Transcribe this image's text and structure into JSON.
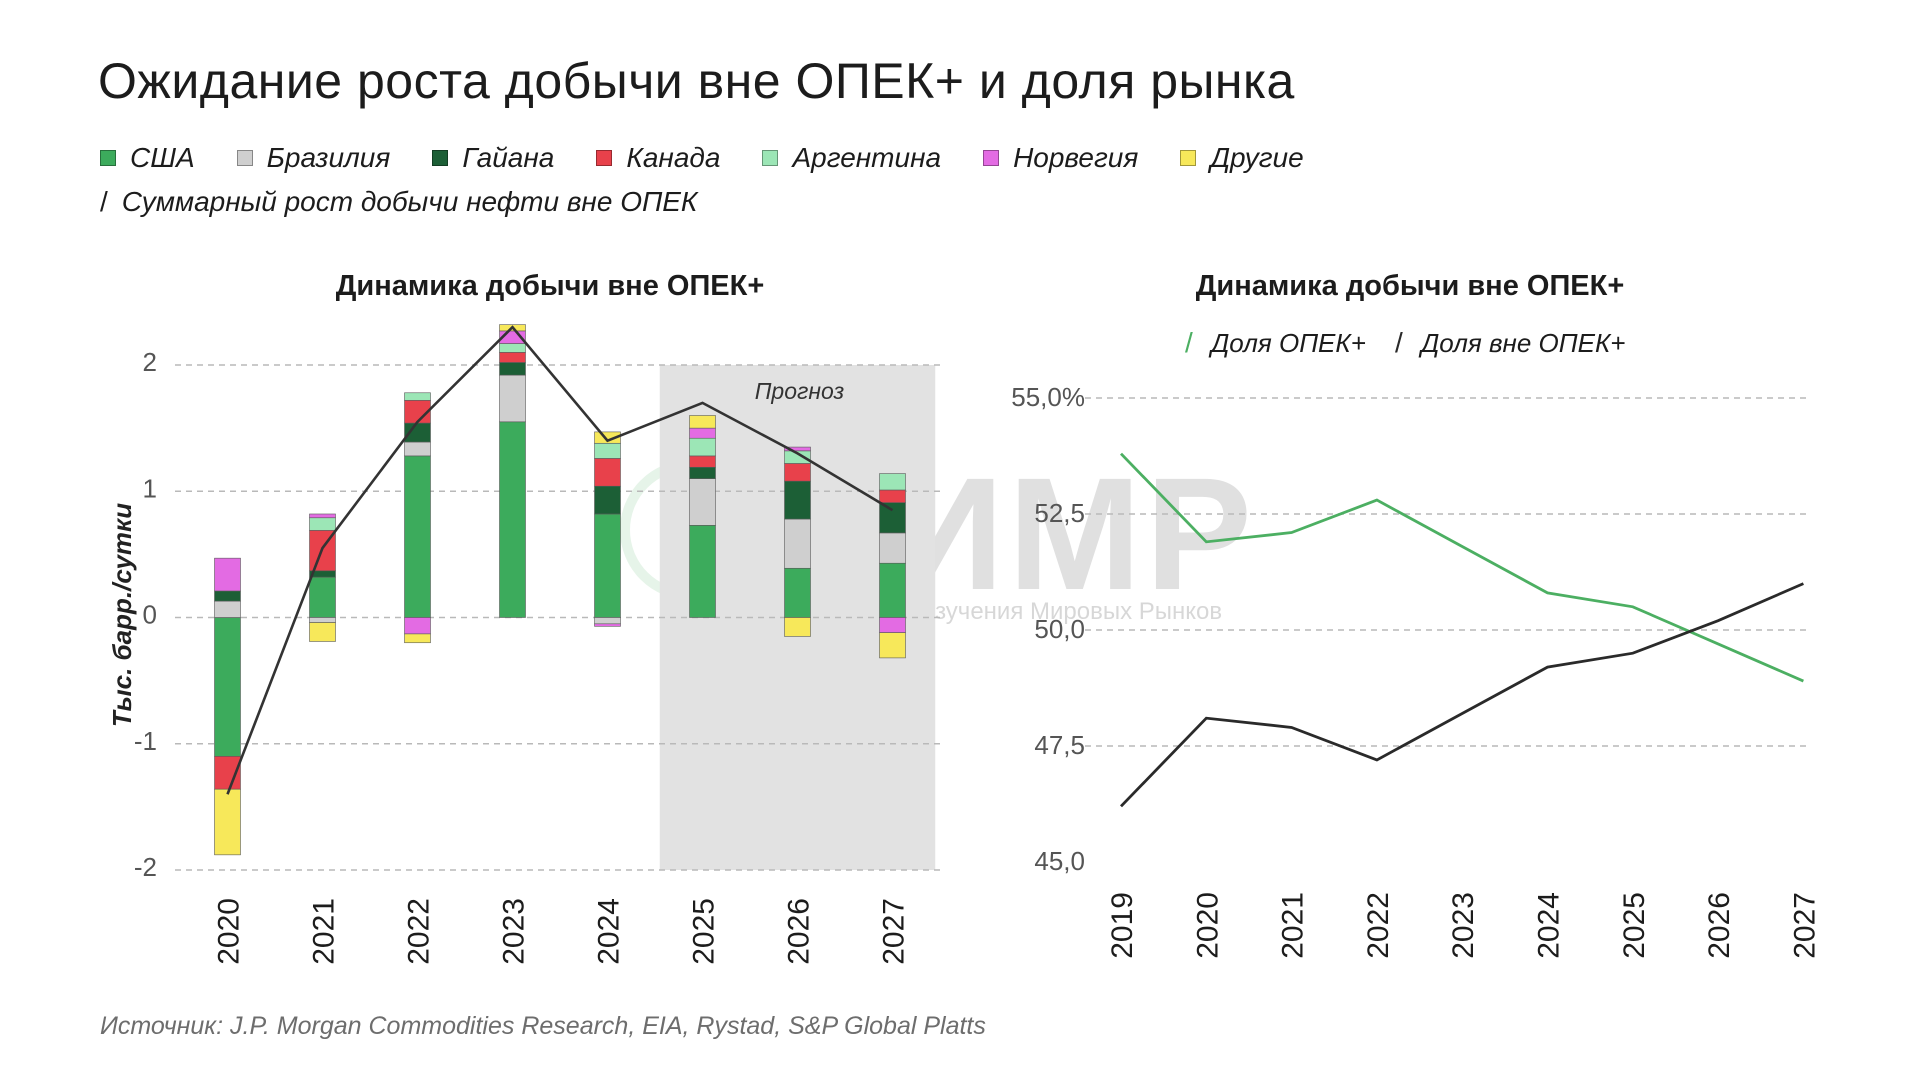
{
  "title": "Ожидание роста добычи вне ОПЕК+ и доля рынка",
  "legend": {
    "items": [
      {
        "label": "США",
        "color": "#3cab5c"
      },
      {
        "label": "Бразилия",
        "color": "#cfcfcf"
      },
      {
        "label": "Гайана",
        "color": "#1c5f36"
      },
      {
        "label": "Канада",
        "color": "#e8414b"
      },
      {
        "label": "Аргентина",
        "color": "#9ce6b6"
      },
      {
        "label": "Норвегия",
        "color": "#e36be3"
      },
      {
        "label": "Другие",
        "color": "#f7e85a"
      }
    ],
    "line_label": "Суммарный рост добычи нефти вне ОПЕК"
  },
  "source": "Источник: J.P. Morgan Commodities Research, EIA, Rystad, S&P Global Platts",
  "watermark": {
    "text": "ИИМР",
    "subtitle": "Институт Изучения Мировых Рынков"
  },
  "chart_data": [
    {
      "type": "bar",
      "stacked": true,
      "title": "Динамика добычи вне ОПЕК+",
      "ylabel": "Тыс. барр./сутки",
      "ylim": [
        -2,
        2
      ],
      "yticks": [
        "-2",
        "-1",
        "0",
        "1",
        "2"
      ],
      "categories": [
        "2020",
        "2021",
        "2022",
        "2023",
        "2024",
        "2025",
        "2026",
        "2027"
      ],
      "series": [
        {
          "name": "США",
          "color": "#3cab5c",
          "values": [
            -1.1,
            0.32,
            1.28,
            1.55,
            0.82,
            0.73,
            0.39,
            0.43
          ]
        },
        {
          "name": "Бразилия",
          "color": "#cfcfcf",
          "values": [
            0.13,
            -0.04,
            0.11,
            0.37,
            -0.05,
            0.37,
            0.39,
            0.24
          ]
        },
        {
          "name": "Гайана",
          "color": "#1c5f36",
          "values": [
            0.08,
            0.05,
            0.15,
            0.1,
            0.22,
            0.09,
            0.3,
            0.24
          ]
        },
        {
          "name": "Канада",
          "color": "#e8414b",
          "values": [
            -0.26,
            0.32,
            0.18,
            0.08,
            0.22,
            0.09,
            0.14,
            0.1
          ]
        },
        {
          "name": "Аргентина",
          "color": "#9ce6b6",
          "values": [
            0,
            0.1,
            0.06,
            0.07,
            0.12,
            0.14,
            0.1,
            0.13
          ]
        },
        {
          "name": "Норвегия",
          "color": "#e36be3",
          "values": [
            0.26,
            0.03,
            -0.13,
            0.1,
            -0.02,
            0.08,
            0.03,
            -0.12
          ]
        },
        {
          "name": "Другие",
          "color": "#f7e85a",
          "values": [
            -0.52,
            -0.15,
            -0.07,
            0.05,
            0.09,
            0.1,
            -0.15,
            -0.2
          ]
        }
      ],
      "line": {
        "name": "Суммарный рост добычи нефти вне ОПЕК",
        "values": [
          -1.4,
          0.55,
          1.55,
          2.3,
          1.4,
          1.7,
          1.3,
          0.85
        ]
      },
      "forecast": {
        "label": "Прогноз",
        "from": "2025",
        "to": "2027"
      }
    },
    {
      "type": "line",
      "title": "Динамика добычи вне ОПЕК+",
      "categories": [
        "2019",
        "2020",
        "2021",
        "2022",
        "2023",
        "2024",
        "2025",
        "2026",
        "2027"
      ],
      "ylim": [
        45,
        55
      ],
      "yticks": [
        "45,0",
        "47,5",
        "50,0",
        "52,5",
        "55,0%"
      ],
      "series": [
        {
          "name": "Доля ОПЕК+",
          "color": "#4caf62",
          "values": [
            53.8,
            51.9,
            52.1,
            52.8,
            51.8,
            50.8,
            50.5,
            49.7,
            48.9
          ]
        },
        {
          "name": "Доля вне ОПЕК+",
          "color": "#2a2a2a",
          "values": [
            46.2,
            48.1,
            47.9,
            47.2,
            48.2,
            49.2,
            49.5,
            50.2,
            51.0
          ]
        }
      ]
    }
  ]
}
